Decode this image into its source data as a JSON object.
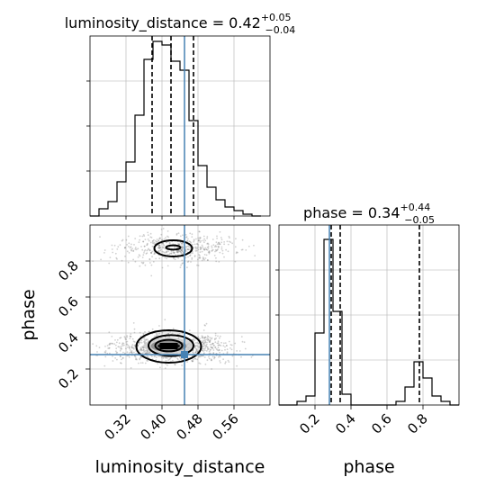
{
  "chart_data": [
    {
      "type": "histogram",
      "panel": "luminosity_distance-marginal",
      "title": {
        "main": "luminosity_distance = 0.42",
        "sup": "+0.05",
        "sub": "−0.04"
      },
      "xlim": [
        0.24,
        0.64
      ],
      "ylim": [
        0,
        1.0
      ],
      "grid": true,
      "bin_edges": [
        0.24,
        0.26,
        0.28,
        0.3,
        0.32,
        0.34,
        0.36,
        0.38,
        0.4,
        0.42,
        0.44,
        0.46,
        0.48,
        0.5,
        0.52,
        0.54,
        0.56,
        0.58,
        0.6,
        0.62
      ],
      "counts": [
        0.0,
        0.04,
        0.08,
        0.19,
        0.3,
        0.56,
        0.87,
        0.97,
        0.95,
        0.86,
        0.81,
        0.53,
        0.28,
        0.16,
        0.09,
        0.05,
        0.03,
        0.01,
        0.0
      ],
      "quantile_lines": [
        0.378,
        0.42,
        0.47
      ],
      "truth": 0.45,
      "colors": {
        "hist": "#000000",
        "truth": "#4682b4",
        "quantile": "#000000",
        "grid": "#b0b0b0"
      }
    },
    {
      "type": "contour-scatter",
      "panel": "luminosity_distance-vs-phase",
      "xlabel": "luminosity_distance",
      "ylabel": "phase",
      "xlim": [
        0.24,
        0.64
      ],
      "ylim": [
        0.0,
        1.0
      ],
      "xticks": [
        "0.32",
        "0.40",
        "0.48",
        "0.56"
      ],
      "xtick_values": [
        0.32,
        0.4,
        0.48,
        0.56
      ],
      "yticks": [
        "0.2",
        "0.4",
        "0.6",
        "0.8"
      ],
      "ytick_values": [
        0.2,
        0.4,
        0.6,
        0.8
      ],
      "grid": true,
      "modes": [
        {
          "cx": 0.43,
          "cy": 0.87,
          "sx": 0.05,
          "sy": 0.045,
          "weight": 0.34
        },
        {
          "cx": 0.42,
          "cy": 0.32,
          "sx": 0.05,
          "sy": 0.045,
          "weight": 0.66
        }
      ],
      "contours": [
        {
          "cx": 0.425,
          "cy": 0.87,
          "rx": 0.042,
          "ry": 0.045,
          "level": 1
        },
        {
          "cx": 0.425,
          "cy": 0.875,
          "rx": 0.016,
          "ry": 0.012,
          "level": 2
        },
        {
          "cx": 0.415,
          "cy": 0.325,
          "rx": 0.072,
          "ry": 0.09,
          "level": 1
        },
        {
          "cx": 0.42,
          "cy": 0.33,
          "rx": 0.05,
          "ry": 0.058,
          "level": 2
        },
        {
          "cx": 0.415,
          "cy": 0.33,
          "rx": 0.03,
          "ry": 0.032,
          "level": 3
        }
      ],
      "density_core": [
        {
          "x0": 0.39,
          "x1": 0.44,
          "y0": 0.31,
          "y1": 0.345,
          "shade": "#000000"
        },
        {
          "x0": 0.375,
          "x1": 0.455,
          "y0": 0.295,
          "y1": 0.36,
          "shade": "#888888"
        },
        {
          "x0": 0.36,
          "x1": 0.47,
          "y0": 0.28,
          "y1": 0.375,
          "shade": "#cfcfcf"
        }
      ],
      "truth": {
        "x": 0.45,
        "y": 0.28
      },
      "colors": {
        "points": "#7a7a7a",
        "contour": "#000000",
        "truth": "#4682b4",
        "grid": "#b0b0b0"
      }
    },
    {
      "type": "histogram",
      "panel": "phase-marginal",
      "title": {
        "main": "phase = 0.34",
        "sup": "+0.44",
        "sub": "−0.05"
      },
      "xlabel": "phase",
      "xlim": [
        0.0,
        1.0
      ],
      "ylim": [
        0,
        1.0
      ],
      "xticks": [
        "0.2",
        "0.4",
        "0.6",
        "0.8"
      ],
      "xtick_values": [
        0.2,
        0.4,
        0.6,
        0.8
      ],
      "grid": true,
      "bin_edges": [
        0.0,
        0.05,
        0.1,
        0.15,
        0.2,
        0.25,
        0.3,
        0.35,
        0.4,
        0.45,
        0.5,
        0.55,
        0.6,
        0.65,
        0.7,
        0.75,
        0.8,
        0.85,
        0.9,
        0.95,
        1.0
      ],
      "counts": [
        0.0,
        0.0,
        0.02,
        0.05,
        0.4,
        0.92,
        0.52,
        0.06,
        0.0,
        0.0,
        0.0,
        0.0,
        0.0,
        0.02,
        0.1,
        0.24,
        0.15,
        0.05,
        0.02,
        0.0
      ],
      "quantile_lines": [
        0.29,
        0.34,
        0.78
      ],
      "truth": 0.28,
      "colors": {
        "hist": "#000000",
        "truth": "#4682b4",
        "quantile": "#000000",
        "grid": "#b0b0b0"
      }
    }
  ]
}
